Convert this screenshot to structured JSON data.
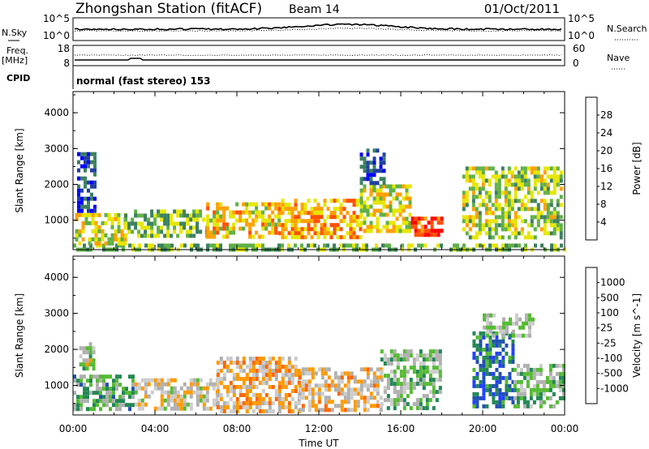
{
  "header": {
    "station": "Zhongshan Station (fitACF)",
    "beam": "Beam 14",
    "date": "01/Oct/2011"
  },
  "status_panels": {
    "nsky": {
      "label": "N.Sky",
      "ticks": [
        "10^5",
        "10^0"
      ]
    },
    "nsearch": {
      "label": "N.Search",
      "ticks": [
        "10^5",
        "10^0"
      ]
    },
    "freq": {
      "label_top": "Freq.",
      "label_bottom": "[MHz]",
      "ticks": [
        "18",
        "8"
      ]
    },
    "nave": {
      "label": "Nave",
      "ticks": [
        "60",
        "0"
      ]
    },
    "cpid": {
      "label": "CPID",
      "text": "normal (fast stereo) 153"
    }
  },
  "colors": {
    "power_scale": [
      "#0000ff",
      "#2040a0",
      "#3c8060",
      "#60b048",
      "#e6e600",
      "#ffa000",
      "#ff5000",
      "#ff0000"
    ],
    "velocity_scale": [
      "#ff0000",
      "#ff6600",
      "#ff9900",
      "#cccccc",
      "#b0b0b0",
      "#55bb33",
      "#228855",
      "#2050b0",
      "#2040ff"
    ]
  },
  "chart_data": [
    {
      "type": "heatmap",
      "name": "power-panel",
      "ylabel": "Slant Range [km]",
      "xlabel": "",
      "x_ticks": [
        "00:00",
        "04:00",
        "08:00",
        "12:00",
        "16:00",
        "20:00",
        "00:00"
      ],
      "xlim_hours": [
        0,
        24
      ],
      "y_ticks": [
        1000,
        2000,
        3000,
        4000
      ],
      "ylim_km": [
        180,
        4590
      ],
      "colorbar": {
        "label": "Power [dB]",
        "ticks": [
          "4",
          "8",
          "12",
          "16",
          "20",
          "24",
          "28"
        ],
        "range": [
          0,
          32
        ]
      },
      "echo_regions": [
        {
          "t": [
            0.0,
            24.0
          ],
          "r": [
            180,
            350
          ],
          "value": 14
        },
        {
          "t": [
            0.1,
            2.5
          ],
          "r": [
            400,
            1200
          ],
          "value": 18
        },
        {
          "t": [
            2.5,
            6.5
          ],
          "r": [
            600,
            1300
          ],
          "value": 14
        },
        {
          "t": [
            6.5,
            10.0
          ],
          "r": [
            500,
            1500
          ],
          "value": 20
        },
        {
          "t": [
            10.0,
            14.0
          ],
          "r": [
            500,
            1600
          ],
          "value": 22
        },
        {
          "t": [
            14.0,
            16.5
          ],
          "r": [
            700,
            2000
          ],
          "value": 18
        },
        {
          "t": [
            16.5,
            18.0
          ],
          "r": [
            600,
            1100
          ],
          "value": 28
        },
        {
          "t": [
            19.0,
            23.8
          ],
          "r": [
            500,
            2500
          ],
          "value": 16
        },
        {
          "t": [
            0.2,
            1.0
          ],
          "r": [
            1300,
            2900
          ],
          "value": 6
        },
        {
          "t": [
            14.0,
            15.2
          ],
          "r": [
            2000,
            3000
          ],
          "value": 6
        }
      ]
    },
    {
      "type": "heatmap",
      "name": "velocity-panel",
      "ylabel": "Slant Range [km]",
      "xlabel": "Time UT",
      "x_ticks": [
        "00:00",
        "04:00",
        "08:00",
        "12:00",
        "16:00",
        "20:00",
        "00:00"
      ],
      "xlim_hours": [
        0,
        24
      ],
      "y_ticks": [
        1000,
        2000,
        3000,
        4000
      ],
      "ylim_km": [
        180,
        4590
      ],
      "colorbar": {
        "label": "Velocity [m s^-1]",
        "ticks": [
          "-1000",
          "-500",
          "-100",
          "-25",
          "25",
          "100",
          "500",
          "1000"
        ],
        "range": [
          -1200,
          1200
        ]
      },
      "echo_regions": [
        {
          "t": [
            0.0,
            3.0
          ],
          "r": [
            300,
            1300
          ],
          "value": 300
        },
        {
          "t": [
            3.0,
            7.0
          ],
          "r": [
            300,
            1200
          ],
          "value": -200
        },
        {
          "t": [
            7.0,
            11.0
          ],
          "r": [
            300,
            1800
          ],
          "value": -400
        },
        {
          "t": [
            11.0,
            15.0
          ],
          "r": [
            300,
            1500
          ],
          "value": -300
        },
        {
          "t": [
            15.0,
            18.0
          ],
          "r": [
            400,
            2000
          ],
          "value": 150
        },
        {
          "t": [
            19.5,
            21.5
          ],
          "r": [
            400,
            2500
          ],
          "value": 700
        },
        {
          "t": [
            21.5,
            24.0
          ],
          "r": [
            400,
            1600
          ],
          "value": 200
        },
        {
          "t": [
            20.0,
            22.5
          ],
          "r": [
            2400,
            3000
          ],
          "value": 10
        },
        {
          "t": [
            0.3,
            1.0
          ],
          "r": [
            1500,
            2200
          ],
          "value": 10
        }
      ]
    }
  ]
}
